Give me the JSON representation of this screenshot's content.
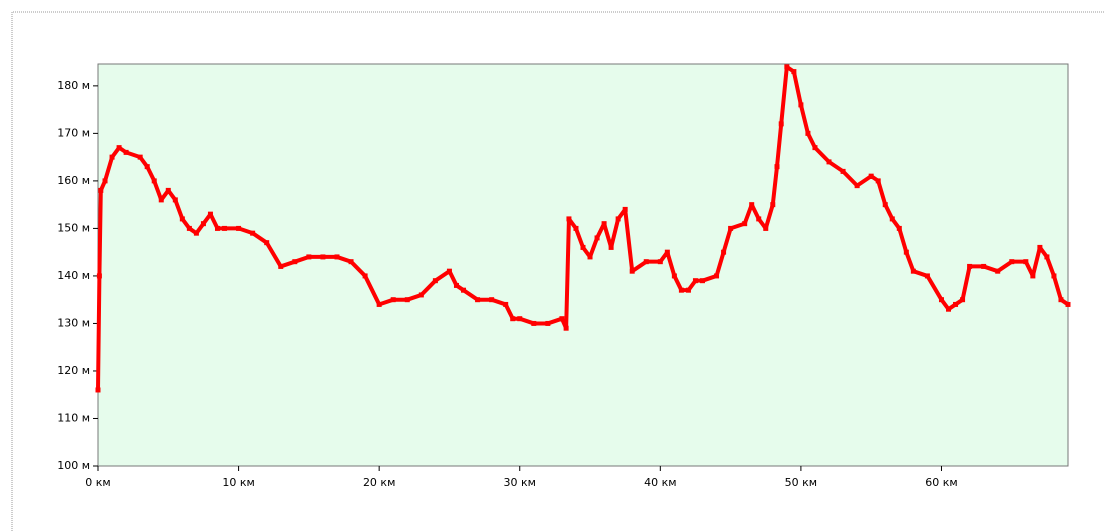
{
  "chart_data": {
    "type": "line",
    "x": [
      0,
      0.1,
      0.2,
      0.5,
      1,
      1.5,
      2,
      3,
      3.5,
      4,
      4.5,
      5,
      5.5,
      6,
      6.5,
      7,
      7.5,
      8,
      8.5,
      9,
      10,
      11,
      12,
      13,
      14,
      15,
      16,
      17,
      18,
      19,
      20,
      21,
      22,
      23,
      24,
      25,
      25.5,
      26,
      27,
      28,
      29,
      29.5,
      30,
      31,
      32,
      33,
      33.3,
      33.5,
      34,
      34.5,
      35,
      35.5,
      36,
      36.5,
      37,
      37.5,
      38,
      39,
      40,
      40.5,
      41,
      41.5,
      42,
      42.5,
      43,
      44,
      44.5,
      45,
      46,
      46.5,
      47,
      47.5,
      48,
      48.3,
      48.6,
      49,
      49.5,
      50,
      50.5,
      51,
      52,
      53,
      54,
      55,
      55.5,
      56,
      56.5,
      57,
      57.5,
      58,
      59,
      60,
      60.5,
      61,
      61.5,
      62,
      63,
      64,
      65,
      66,
      66.5,
      67,
      67.5,
      68,
      68.5,
      69
    ],
    "series": [
      {
        "color": "#ff0000",
        "values": [
          116,
          140,
          158,
          160,
          165,
          167,
          166,
          165,
          163,
          160,
          156,
          158,
          156,
          152,
          150,
          149,
          151,
          153,
          150,
          150,
          150,
          149,
          147,
          142,
          143,
          144,
          144,
          144,
          143,
          140,
          134,
          135,
          135,
          136,
          139,
          141,
          138,
          137,
          135,
          135,
          134,
          131,
          131,
          130,
          130,
          131,
          129,
          152,
          150,
          146,
          144,
          148,
          151,
          146,
          152,
          154,
          141,
          143,
          143,
          145,
          140,
          137,
          137,
          139,
          139,
          140,
          145,
          150,
          151,
          155,
          152,
          150,
          155,
          163,
          172,
          184,
          183,
          176,
          170,
          167,
          164,
          162,
          159,
          161,
          160,
          155,
          152,
          150,
          145,
          141,
          140,
          135,
          133,
          134,
          135,
          142,
          142,
          141,
          143,
          143,
          140,
          146,
          144,
          140,
          135,
          134
        ]
      }
    ],
    "xlim": [
      0,
      69
    ],
    "ylim": [
      100,
      184.6
    ],
    "xticks": [
      {
        "value": 0,
        "label": "0 км"
      },
      {
        "value": 10,
        "label": "10 км"
      },
      {
        "value": 20,
        "label": "20 км"
      },
      {
        "value": 30,
        "label": "30 км"
      },
      {
        "value": 40,
        "label": "40 км"
      },
      {
        "value": 50,
        "label": "50 км"
      },
      {
        "value": 60,
        "label": "60 км"
      }
    ],
    "yticks": [
      {
        "value": 100,
        "label": "100 м"
      },
      {
        "value": 110,
        "label": "110 м"
      },
      {
        "value": 120,
        "label": "120 м"
      },
      {
        "value": 130,
        "label": "130 м"
      },
      {
        "value": 140,
        "label": "140 м"
      },
      {
        "value": 150,
        "label": "150 м"
      },
      {
        "value": 160,
        "label": "160 м"
      },
      {
        "value": 170,
        "label": "170 м"
      },
      {
        "value": 180,
        "label": "180 м"
      }
    ]
  }
}
